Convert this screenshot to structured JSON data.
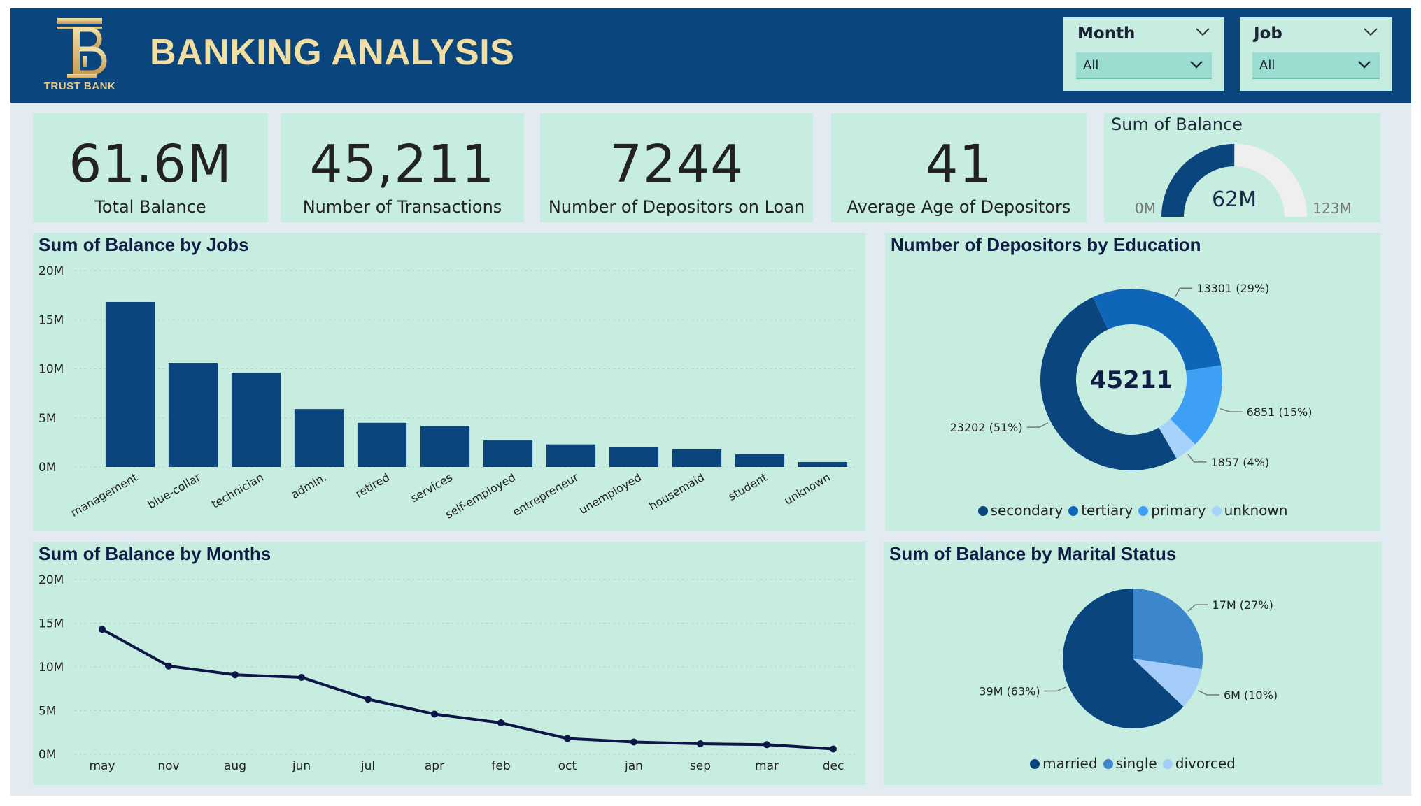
{
  "header": {
    "brand": "TRUST BANK",
    "title": "BANKING ANALYSIS",
    "logo_letters": "TB"
  },
  "slicers": {
    "month": {
      "label": "Month",
      "value": "All"
    },
    "job": {
      "label": "Job",
      "value": "All"
    }
  },
  "kpis": [
    {
      "value": "61.6M",
      "label": "Total Balance"
    },
    {
      "value": "45,211",
      "label": "Number of Transactions"
    },
    {
      "value": "7244",
      "label": "Number of Depositors on Loan"
    },
    {
      "value": "41",
      "label": "Average Age of Depositors"
    }
  ],
  "gauge": {
    "title": "Sum of Balance",
    "value_label": "62M",
    "min_label": "0M",
    "max_label": "123M",
    "value": 61.6,
    "max": 123,
    "fill_color": "#0b457d",
    "track_color": "#efefef"
  },
  "colors": {
    "header_bg": "#0b457d",
    "card_bg": "#c6ede0",
    "bar": "#0b457d",
    "line": "#0d1747"
  },
  "chart_data": [
    {
      "type": "bar",
      "title": "Sum of Balance by Jobs",
      "categories": [
        "management",
        "blue-collar",
        "technician",
        "admin.",
        "retired",
        "services",
        "self-employed",
        "entrepreneur",
        "unemployed",
        "housemaid",
        "student",
        "unknown"
      ],
      "values": [
        16.8,
        10.6,
        9.6,
        5.9,
        4.5,
        4.2,
        2.7,
        2.3,
        2.0,
        1.8,
        1.3,
        0.5
      ],
      "yticks": [
        "0M",
        "5M",
        "10M",
        "15M",
        "20M"
      ],
      "ylim": [
        0,
        20
      ],
      "grid": true
    },
    {
      "type": "line",
      "title": "Sum of Balance by Months",
      "categories": [
        "may",
        "nov",
        "aug",
        "jun",
        "jul",
        "apr",
        "feb",
        "oct",
        "jan",
        "sep",
        "mar",
        "dec"
      ],
      "values": [
        14.3,
        10.1,
        9.1,
        8.8,
        6.3,
        4.6,
        3.6,
        1.8,
        1.4,
        1.2,
        1.1,
        0.6
      ],
      "yticks": [
        "0M",
        "5M",
        "10M",
        "15M",
        "20M"
      ],
      "ylim": [
        0,
        20
      ],
      "grid": true
    },
    {
      "type": "pie",
      "variant": "donut",
      "title": "Number of Depositors by Education",
      "center_label": "45211",
      "slices": [
        {
          "name": "secondary",
          "value": 23202,
          "label": "23202 (51%)",
          "color": "#0b457d"
        },
        {
          "name": "tertiary",
          "value": 13301,
          "label": "13301 (29%)",
          "color": "#0f66b8"
        },
        {
          "name": "primary",
          "value": 6851,
          "label": "6851 (15%)",
          "color": "#3da0f5"
        },
        {
          "name": "unknown",
          "value": 1857,
          "label": "1857 (4%)",
          "color": "#a7d3fa"
        }
      ],
      "legend_position": "bottom"
    },
    {
      "type": "pie",
      "title": "Sum of Balance by Marital Status",
      "slices": [
        {
          "name": "married",
          "value": 39,
          "label": "39M (63%)",
          "color": "#0b457d"
        },
        {
          "name": "single",
          "value": 17,
          "label": "17M (27%)",
          "color": "#3c86cc"
        },
        {
          "name": "divorced",
          "value": 6,
          "label": "6M (10%)",
          "color": "#a3ccf8"
        }
      ],
      "legend_position": "bottom"
    }
  ]
}
